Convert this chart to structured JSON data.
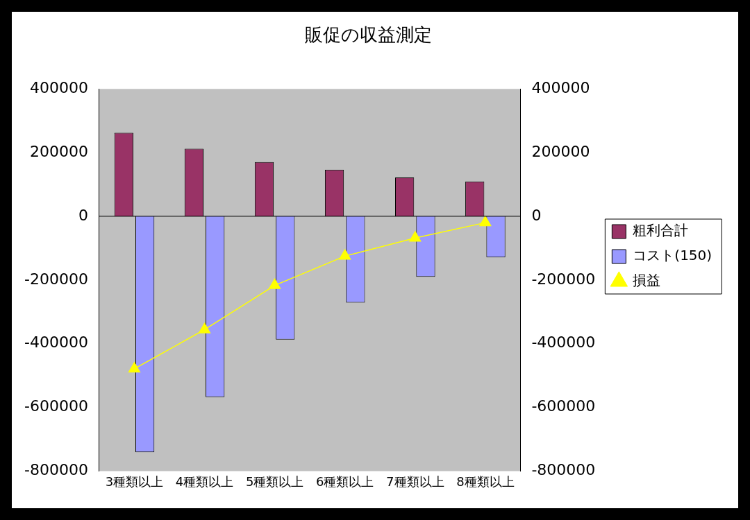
{
  "chart_data": {
    "type": "bar",
    "title": "販促の収益測定",
    "categories": [
      "3種類以上",
      "4種類以上",
      "5種類以上",
      "6種類以上",
      "7種類以上",
      "8種類以上"
    ],
    "series": [
      {
        "name": "粗利合計",
        "color": "#993366",
        "values": [
          262000,
          212000,
          170000,
          146000,
          122000,
          109000
        ]
      },
      {
        "name": "コスト(150)",
        "color": "#9999ff",
        "values": [
          -741000,
          -568000,
          -387000,
          -271000,
          -190000,
          -129000
        ]
      },
      {
        "name": "損益",
        "type": "line",
        "color": "#ffff00",
        "marker": "triangle",
        "values": [
          -479000,
          -356000,
          -217000,
          -125000,
          -68000,
          -20000
        ]
      }
    ],
    "ylim": [
      -800000,
      400000
    ],
    "yticks": [
      -800000,
      -600000,
      -400000,
      -200000,
      0,
      200000,
      400000
    ],
    "y2lim": [
      -800000,
      400000
    ],
    "y2ticks": [
      -800000,
      -600000,
      -400000,
      -200000,
      0,
      200000,
      400000
    ],
    "ref_lines": [
      {
        "axis": "y",
        "value": 0,
        "color": "#000000"
      }
    ],
    "grid": false,
    "legend": "right"
  }
}
